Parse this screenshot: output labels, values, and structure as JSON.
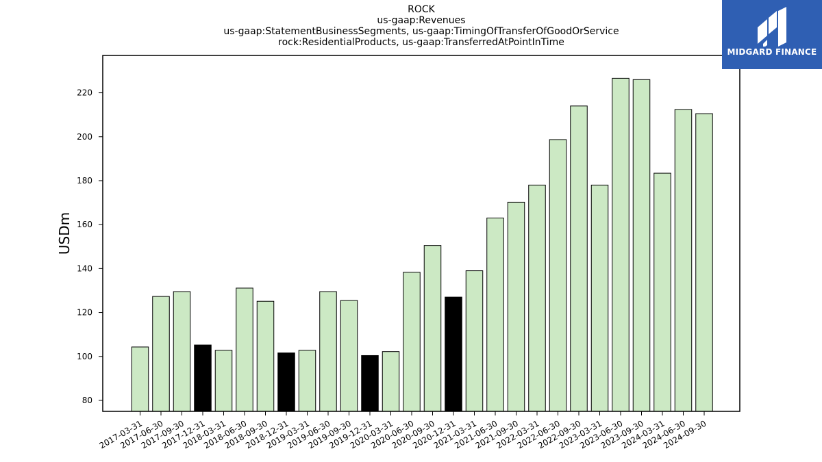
{
  "chart_data": {
    "type": "bar",
    "title_lines": [
      "ROCK",
      "us-gaap:Revenues",
      "us-gaap:StatementBusinessSegments, us-gaap:TimingOfTransferOfGoodOrService",
      "rock:ResidentialProducts, us-gaap:TransferredAtPointInTime"
    ],
    "xlabel": "",
    "ylabel": "USDm",
    "ylim": [
      75,
      237
    ],
    "yticks": [
      80,
      100,
      120,
      140,
      160,
      180,
      200,
      220
    ],
    "categories": [
      "2017-03-31",
      "2017-06-30",
      "2017-09-30",
      "2017-12-31",
      "2018-03-31",
      "2018-06-30",
      "2018-09-30",
      "2018-12-31",
      "2019-03-31",
      "2019-06-30",
      "2019-09-30",
      "2019-12-31",
      "2020-03-31",
      "2020-06-30",
      "2020-09-30",
      "2020-12-31",
      "2021-03-31",
      "2021-06-30",
      "2021-09-30",
      "2022-03-31",
      "2022-06-30",
      "2022-09-30",
      "2023-03-31",
      "2023-06-30",
      "2023-09-30",
      "2024-03-31",
      "2024-06-30",
      "2024-09-30"
    ],
    "values": [
      104.3,
      127.3,
      129.5,
      105.2,
      102.8,
      131.1,
      125.1,
      101.6,
      102.8,
      129.5,
      125.5,
      100.4,
      102.2,
      138.3,
      150.5,
      127.0,
      139.0,
      163.0,
      170.2,
      178.0,
      198.7,
      214.0,
      178.0,
      226.6,
      226.0,
      183.4,
      212.4,
      210.5
    ],
    "highlighted": [
      "2017-12-31",
      "2018-12-31",
      "2019-12-31",
      "2020-12-31"
    ],
    "colors": {
      "bar": "#cce9c4",
      "highlight": "#000000",
      "edge": "#000000"
    },
    "grid": false,
    "legend": "none"
  },
  "logo": {
    "text": "MIDGARD FINANCE",
    "background": "#2f5fb3",
    "icon": "midgard-m-logo-icon"
  }
}
